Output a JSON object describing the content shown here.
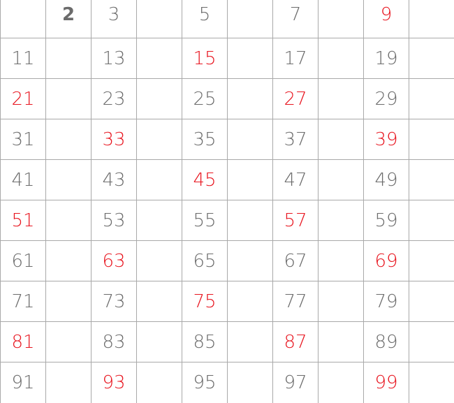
{
  "colors": {
    "text": "#6b6b6b",
    "highlight": "#e8141e",
    "grid": "#a9a9a9",
    "background": "#ffffff"
  },
  "rows": [
    [
      {
        "text": "",
        "style": "gray"
      },
      {
        "text": "2",
        "style": "bold"
      },
      {
        "text": "3",
        "style": "gray"
      },
      {
        "text": "",
        "style": "gray"
      },
      {
        "text": "5",
        "style": "gray"
      },
      {
        "text": "",
        "style": "gray"
      },
      {
        "text": "7",
        "style": "gray"
      },
      {
        "text": "",
        "style": "gray"
      },
      {
        "text": "9",
        "style": "red"
      },
      {
        "text": "",
        "style": "gray"
      }
    ],
    [
      {
        "text": "11",
        "style": "gray"
      },
      {
        "text": "",
        "style": "gray"
      },
      {
        "text": "13",
        "style": "gray"
      },
      {
        "text": "",
        "style": "gray"
      },
      {
        "text": "15",
        "style": "red"
      },
      {
        "text": "",
        "style": "gray"
      },
      {
        "text": "17",
        "style": "gray"
      },
      {
        "text": "",
        "style": "gray"
      },
      {
        "text": "19",
        "style": "gray"
      },
      {
        "text": "",
        "style": "gray"
      }
    ],
    [
      {
        "text": "21",
        "style": "red"
      },
      {
        "text": "",
        "style": "gray"
      },
      {
        "text": "23",
        "style": "gray"
      },
      {
        "text": "",
        "style": "gray"
      },
      {
        "text": "25",
        "style": "gray"
      },
      {
        "text": "",
        "style": "gray"
      },
      {
        "text": "27",
        "style": "red"
      },
      {
        "text": "",
        "style": "gray"
      },
      {
        "text": "29",
        "style": "gray"
      },
      {
        "text": "",
        "style": "gray"
      }
    ],
    [
      {
        "text": "31",
        "style": "gray"
      },
      {
        "text": "",
        "style": "gray"
      },
      {
        "text": "33",
        "style": "red"
      },
      {
        "text": "",
        "style": "gray"
      },
      {
        "text": "35",
        "style": "gray"
      },
      {
        "text": "",
        "style": "gray"
      },
      {
        "text": "37",
        "style": "gray"
      },
      {
        "text": "",
        "style": "gray"
      },
      {
        "text": "39",
        "style": "red"
      },
      {
        "text": "",
        "style": "gray"
      }
    ],
    [
      {
        "text": "41",
        "style": "gray"
      },
      {
        "text": "",
        "style": "gray"
      },
      {
        "text": "43",
        "style": "gray"
      },
      {
        "text": "",
        "style": "gray"
      },
      {
        "text": "45",
        "style": "red"
      },
      {
        "text": "",
        "style": "gray"
      },
      {
        "text": "47",
        "style": "gray"
      },
      {
        "text": "",
        "style": "gray"
      },
      {
        "text": "49",
        "style": "gray"
      },
      {
        "text": "",
        "style": "gray"
      }
    ],
    [
      {
        "text": "51",
        "style": "red"
      },
      {
        "text": "",
        "style": "gray"
      },
      {
        "text": "53",
        "style": "gray"
      },
      {
        "text": "",
        "style": "gray"
      },
      {
        "text": "55",
        "style": "gray"
      },
      {
        "text": "",
        "style": "gray"
      },
      {
        "text": "57",
        "style": "red"
      },
      {
        "text": "",
        "style": "gray"
      },
      {
        "text": "59",
        "style": "gray"
      },
      {
        "text": "",
        "style": "gray"
      }
    ],
    [
      {
        "text": "61",
        "style": "gray"
      },
      {
        "text": "",
        "style": "gray"
      },
      {
        "text": "63",
        "style": "red"
      },
      {
        "text": "",
        "style": "gray"
      },
      {
        "text": "65",
        "style": "gray"
      },
      {
        "text": "",
        "style": "gray"
      },
      {
        "text": "67",
        "style": "gray"
      },
      {
        "text": "",
        "style": "gray"
      },
      {
        "text": "69",
        "style": "red"
      },
      {
        "text": "",
        "style": "gray"
      }
    ],
    [
      {
        "text": "71",
        "style": "gray"
      },
      {
        "text": "",
        "style": "gray"
      },
      {
        "text": "73",
        "style": "gray"
      },
      {
        "text": "",
        "style": "gray"
      },
      {
        "text": "75",
        "style": "red"
      },
      {
        "text": "",
        "style": "gray"
      },
      {
        "text": "77",
        "style": "gray"
      },
      {
        "text": "",
        "style": "gray"
      },
      {
        "text": "79",
        "style": "gray"
      },
      {
        "text": "",
        "style": "gray"
      }
    ],
    [
      {
        "text": "81",
        "style": "red"
      },
      {
        "text": "",
        "style": "gray"
      },
      {
        "text": "83",
        "style": "gray"
      },
      {
        "text": "",
        "style": "gray"
      },
      {
        "text": "85",
        "style": "gray"
      },
      {
        "text": "",
        "style": "gray"
      },
      {
        "text": "87",
        "style": "red"
      },
      {
        "text": "",
        "style": "gray"
      },
      {
        "text": "89",
        "style": "gray"
      },
      {
        "text": "",
        "style": "gray"
      }
    ],
    [
      {
        "text": "91",
        "style": "gray"
      },
      {
        "text": "",
        "style": "gray"
      },
      {
        "text": "93",
        "style": "red"
      },
      {
        "text": "",
        "style": "gray"
      },
      {
        "text": "95",
        "style": "gray"
      },
      {
        "text": "",
        "style": "gray"
      },
      {
        "text": "97",
        "style": "gray"
      },
      {
        "text": "",
        "style": "gray"
      },
      {
        "text": "99",
        "style": "red"
      },
      {
        "text": "",
        "style": "gray"
      }
    ]
  ]
}
